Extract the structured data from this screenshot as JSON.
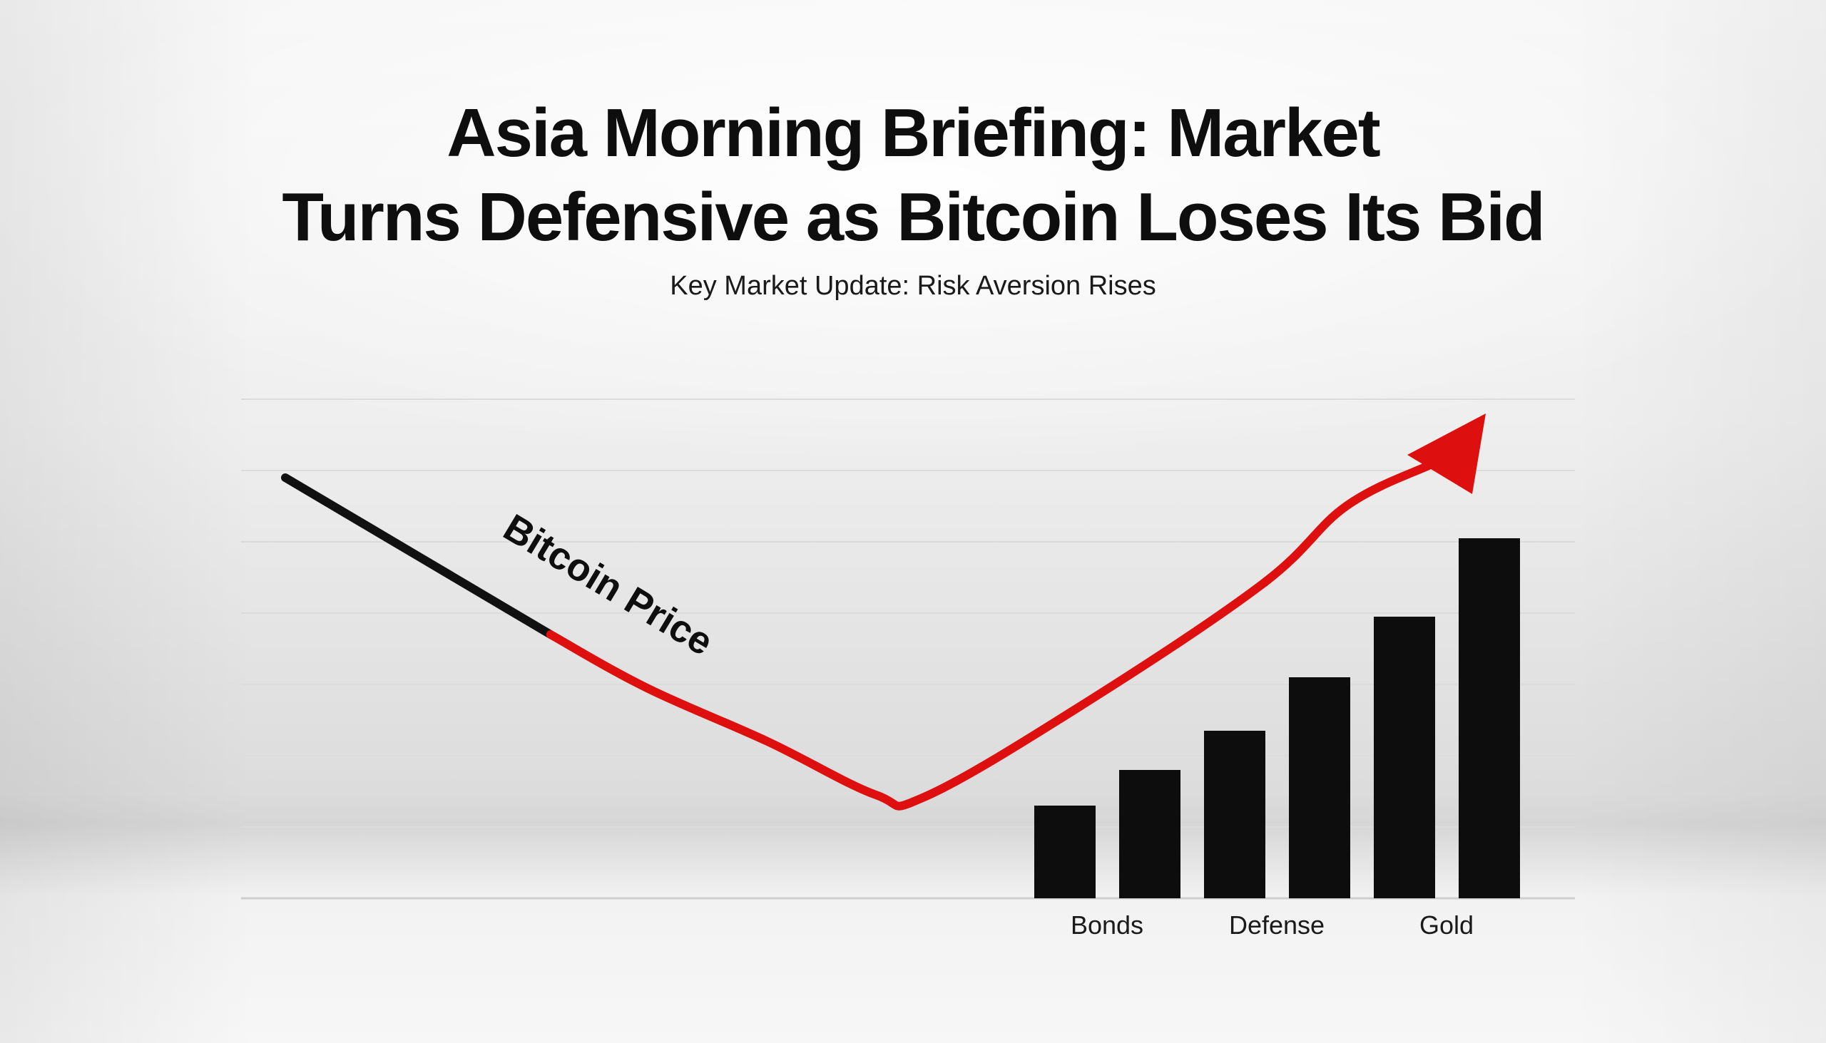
{
  "title": {
    "line1": "Asia Morning Briefing: Market",
    "line2": "Turns Defensive as Bitcoin Loses Its Bid"
  },
  "subtitle": "Key Market Update: Risk Aversion Rises",
  "colors": {
    "background": "#f2f2f2",
    "bitcoin_start": "#111111",
    "bitcoin_trend": "#dd0f0f",
    "bars": "#0d0d0d",
    "gridline": "#dcdcdc",
    "text": "#0e0e0e"
  },
  "chart_data": {
    "type": "bar",
    "line_label": "Bitcoin Price",
    "grid": true,
    "bars": {
      "categories": [
        "",
        "Bonds",
        "",
        "Defense",
        "",
        "Gold"
      ],
      "values": [
        1.3,
        1.8,
        2.35,
        3.1,
        3.95,
        5.05
      ],
      "ylim": [
        0,
        7
      ]
    },
    "line": {
      "points": [
        [
          0.0,
          5.9
        ],
        [
          0.22,
          3.7
        ],
        [
          0.3,
          2.95
        ],
        [
          0.4,
          2.2
        ],
        [
          0.49,
          1.45
        ],
        [
          0.53,
          1.42
        ],
        [
          0.66,
          2.7
        ],
        [
          0.81,
          4.4
        ],
        [
          0.88,
          5.5
        ],
        [
          0.93,
          6.55
        ],
        [
          0.958,
          6.6
        ]
      ],
      "color_change_at": 0.22,
      "arrow": true
    }
  }
}
